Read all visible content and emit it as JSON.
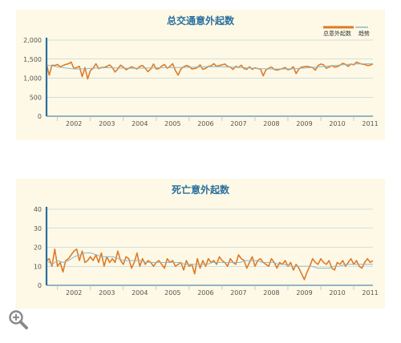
{
  "colors": {
    "accent_title": "#2a6f9e",
    "series_primary": "#e07a26",
    "series_trend": "#8fb8c5",
    "axis": "#2a6f9e",
    "grid": "#a9c4cf",
    "panel_bg": "#fdf9e6"
  },
  "zoom_icon": "magnifier-plus-icon",
  "chart_data": [
    {
      "type": "line",
      "title": "总交通意外起数",
      "xlabel": "",
      "ylabel": "",
      "ylim": [
        0,
        2000
      ],
      "yticks": [
        "0",
        "500",
        "1,000",
        "1,500",
        "2,000"
      ],
      "ytick_values": [
        0,
        500,
        1000,
        1500,
        2000
      ],
      "x_start": "2001-09",
      "x_end": "2011-08",
      "xticks": [
        "2002",
        "2003",
        "2004",
        "2005",
        "2006",
        "2007",
        "2008",
        "2009",
        "2010",
        "2011"
      ],
      "grid": true,
      "legend_position": "top-right",
      "legend": [
        "总意外起数",
        "趋势"
      ],
      "series": [
        {
          "name": "总意外起数",
          "values": [
            1360,
            1080,
            1340,
            1330,
            1360,
            1300,
            1330,
            1360,
            1380,
            1420,
            1250,
            1280,
            1310,
            1040,
            1280,
            980,
            1200,
            1260,
            1380,
            1250,
            1280,
            1280,
            1310,
            1350,
            1280,
            1160,
            1240,
            1340,
            1290,
            1220,
            1260,
            1300,
            1270,
            1240,
            1310,
            1330,
            1260,
            1170,
            1240,
            1370,
            1240,
            1250,
            1320,
            1360,
            1260,
            1310,
            1380,
            1200,
            1080,
            1240,
            1300,
            1330,
            1310,
            1240,
            1250,
            1280,
            1350,
            1230,
            1260,
            1310,
            1320,
            1380,
            1310,
            1330,
            1350,
            1370,
            1310,
            1290,
            1230,
            1310,
            1280,
            1340,
            1250,
            1230,
            1300,
            1230,
            1270,
            1250,
            1240,
            1060,
            1220,
            1260,
            1290,
            1230,
            1210,
            1230,
            1250,
            1280,
            1220,
            1240,
            1300,
            1120,
            1240,
            1290,
            1300,
            1310,
            1290,
            1280,
            1210,
            1330,
            1370,
            1350,
            1260,
            1290,
            1330,
            1290,
            1300,
            1340,
            1390,
            1360,
            1310,
            1370,
            1350,
            1420,
            1390,
            1370,
            1360,
            1330,
            1340,
            1380
          ]
        },
        {
          "name": "趋势",
          "values": [
            1340,
            1320,
            1290,
            1270,
            1250,
            1240,
            1245,
            1255,
            1265,
            1270,
            1275,
            1270,
            1265,
            1262,
            1260,
            1262,
            1265,
            1268,
            1272,
            1275,
            1278,
            1280,
            1282,
            1285,
            1290,
            1295,
            1300,
            1302,
            1300,
            1295,
            1290,
            1285,
            1275,
            1265,
            1255,
            1248,
            1242,
            1240,
            1240,
            1243,
            1248,
            1255,
            1265,
            1278,
            1290,
            1305,
            1320,
            1335,
            1350,
            1362,
            1370,
            1375,
            1377,
            1380
          ]
        }
      ]
    },
    {
      "type": "line",
      "title": "死亡意外起数",
      "xlabel": "",
      "ylabel": "",
      "ylim": [
        0,
        40
      ],
      "yticks": [
        "0",
        "10",
        "20",
        "30",
        "40"
      ],
      "ytick_values": [
        0,
        10,
        20,
        30,
        40
      ],
      "x_start": "2001-09",
      "x_end": "2011-08",
      "xticks": [
        "2002",
        "2003",
        "2004",
        "2005",
        "2006",
        "2007",
        "2008",
        "2009",
        "2010",
        "2011"
      ],
      "grid": true,
      "legend": [],
      "series": [
        {
          "name": "",
          "values": [
            13,
            14,
            10,
            19,
            10,
            12,
            7,
            13,
            14,
            16,
            18,
            19,
            13,
            18,
            12,
            13,
            15,
            13,
            16,
            12,
            17,
            10,
            15,
            12,
            14,
            12,
            18,
            13,
            11,
            15,
            14,
            9,
            12,
            17,
            10,
            14,
            11,
            13,
            12,
            10,
            12,
            13,
            11,
            9,
            14,
            12,
            13,
            10,
            11,
            12,
            8,
            13,
            10,
            11,
            6,
            14,
            9,
            13,
            10,
            14,
            12,
            13,
            11,
            15,
            13,
            12,
            10,
            14,
            12,
            11,
            16,
            14,
            13,
            9,
            12,
            15,
            10,
            13,
            14,
            12,
            11,
            10,
            14,
            12,
            9,
            12,
            11,
            13,
            10,
            12,
            8,
            11,
            9,
            6,
            3,
            7,
            10,
            14,
            12,
            11,
            14,
            12,
            11,
            13,
            9,
            8,
            12,
            11,
            13,
            10,
            12,
            14,
            11,
            13,
            10,
            9,
            12,
            14,
            12,
            13
          ]
        },
        {
          "name": "",
          "values": [
            13,
            11,
            13,
            12,
            13,
            15,
            16,
            17,
            17,
            16,
            15,
            15,
            15,
            14,
            13,
            13,
            13,
            13,
            12,
            12,
            12,
            12,
            12,
            12,
            12,
            11,
            11,
            11,
            11,
            11,
            12,
            12,
            12,
            12,
            12,
            12,
            13,
            13,
            13,
            12,
            12,
            12,
            11,
            11,
            10,
            10,
            10,
            10,
            10,
            9,
            9,
            9,
            10,
            10,
            11,
            11,
            11,
            11,
            11,
            11
          ]
        }
      ]
    }
  ]
}
